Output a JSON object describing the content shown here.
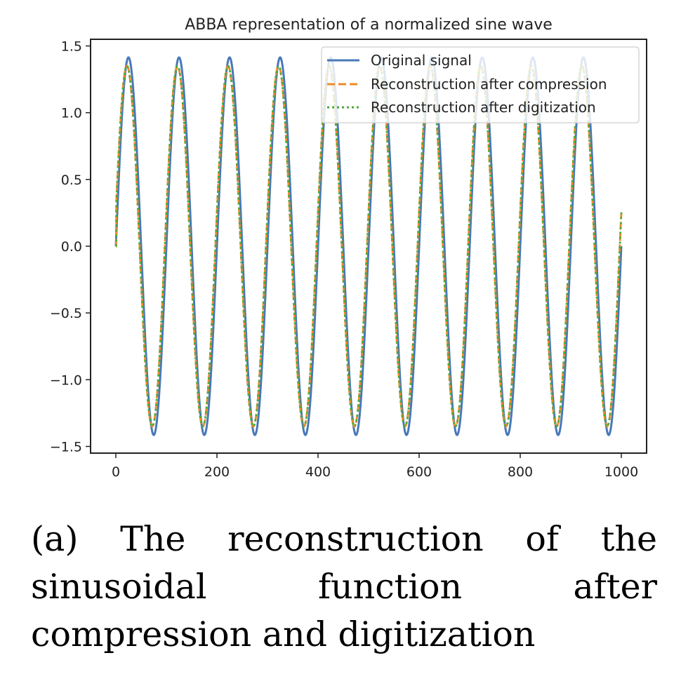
{
  "chart_data": {
    "type": "line",
    "title": "ABBA representation of a normalized sine wave",
    "xlabel": "",
    "ylabel": "",
    "xlim": [
      -50,
      1050
    ],
    "ylim": [
      -1.55,
      1.55
    ],
    "xticks": [
      0,
      200,
      400,
      600,
      800,
      1000
    ],
    "xtick_labels": [
      "0",
      "200",
      "400",
      "600",
      "800",
      "1000"
    ],
    "yticks": [
      1.5,
      1.0,
      0.5,
      0.0,
      -0.5,
      -1.0,
      -1.5
    ],
    "ytick_labels": [
      "1.5",
      "1.0",
      "0.5",
      "0.0",
      "−0.5",
      "−1.0",
      "−1.5"
    ],
    "grid": false,
    "legend_position": "top-right",
    "signal": {
      "function": "amplitude * sin(2*pi*x/period)",
      "x_range": [
        0,
        1000
      ],
      "period": 100,
      "amplitude": 1.414
    },
    "series": [
      {
        "name": "Original signal",
        "color": "#4878b8",
        "style": "solid",
        "amplitude": 1.414,
        "phase_shift": 0
      },
      {
        "name": "Reconstruction after compression",
        "color": "#f08a24",
        "style": "dashed",
        "amplitude": 1.35,
        "phase_shift": -3
      },
      {
        "name": "Reconstruction after digitization",
        "color": "#4caa3a",
        "style": "dotted",
        "amplitude": 1.35,
        "phase_shift": -3
      }
    ]
  },
  "caption": "(a) The reconstruction of the sinusoidal function after compression and digitization"
}
